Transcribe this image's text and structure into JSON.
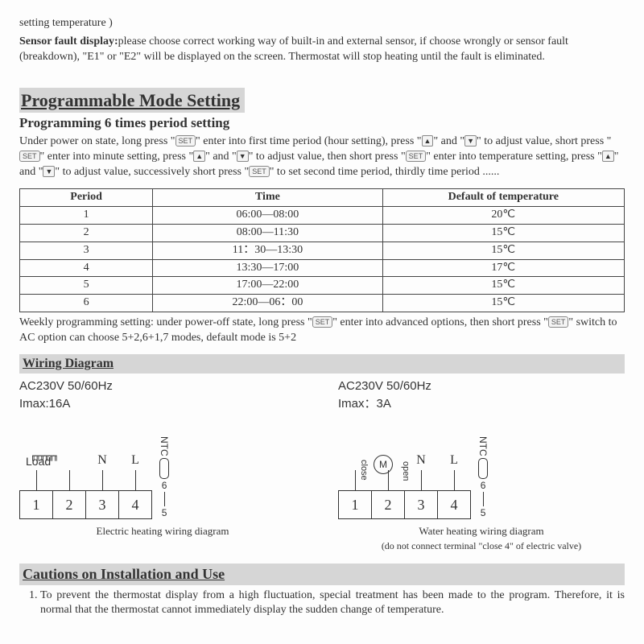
{
  "top_fragment": "setting temperature )",
  "sensor_fault_title": "Sensor fault display:",
  "sensor_fault_body": "please choose correct working way of built-in and external sensor, if choose wrongly or sensor fault (breakdown), \"E1\" or \"E2\" will be displayed on the screen. Thermostat will stop heating until the fault is eliminated.",
  "prog_mode_title": "Programmable Mode Setting",
  "prog_sub_title": "Programming 6 times period setting",
  "prog_body_1": "Under power on state, long press \"",
  "prog_body_2": "\" enter into first time period (hour setting), press \"",
  "prog_body_3": "\" and \"",
  "prog_body_4": "\" to adjust value, short press \"",
  "prog_body_5": "\" enter into minute setting, press \"",
  "prog_body_6": "\" and \"",
  "prog_body_7": "\" to adjust value, then short press \"",
  "prog_body_8": "\" enter into temperature setting, press \"",
  "prog_body_9": "\" and \"",
  "prog_body_10": "\" to adjust value, successively short press \"",
  "prog_body_11": "\" to set second time period, thirdly time period ......",
  "btn_set": "SET",
  "btn_up": "▲",
  "btn_down": "▼",
  "table": {
    "columns": [
      "Period",
      "Time",
      "Default of temperature"
    ],
    "rows": [
      [
        "1",
        "06:00—08:00",
        "20℃"
      ],
      [
        "2",
        "08:00—11:30",
        "15℃"
      ],
      [
        "3",
        "11：30—13:30",
        "15℃"
      ],
      [
        "4",
        "13:30—17:00",
        "17℃"
      ],
      [
        "5",
        "17:00—22:00",
        "15℃"
      ],
      [
        "6",
        "22:00—06：00",
        "15℃"
      ]
    ],
    "col_widths": [
      "22%",
      "38%",
      "40%"
    ]
  },
  "weekly_1": "Weekly programming setting: under power-off state, long press \"",
  "weekly_2": "\" enter into advanced options, then short press \"",
  "weekly_3": "\" switch to AC option can choose 5+2,6+1,7 modes, default mode is 5+2",
  "wiring_title": "Wiring Diagram",
  "electric": {
    "spec1": "AC230V 50/60Hz",
    "spec2": "Imax:16A",
    "load": "Load",
    "N": "N",
    "L": "L",
    "ntc": "NTC",
    "t1": "1",
    "t2": "2",
    "t3": "3",
    "t4": "4",
    "t5": "5",
    "t6": "6",
    "caption": "Electric heating wiring diagram"
  },
  "water": {
    "spec1": "AC230V 50/60Hz",
    "spec2": "Imax：3A",
    "close": "close",
    "open": "open",
    "M": "M",
    "N": "N",
    "L": "L",
    "ntc": "NTC",
    "t1": "1",
    "t2": "2",
    "t3": "3",
    "t4": "4",
    "t5": "5",
    "t6": "6",
    "caption": "Water heating wiring diagram",
    "caption_sub": "(do not connect terminal \"close 4\" of electric valve)"
  },
  "cautions_title": "Cautions on Installation and Use",
  "cautions": [
    "To prevent the thermostat display from a high fluctuation, special treatment has been made to the program. Therefore, it is normal that the thermostat cannot immediately display the sudden change of temperature."
  ],
  "colors": {
    "section_bg": "#d6d6d6",
    "text": "#333333",
    "border": "#444444"
  }
}
